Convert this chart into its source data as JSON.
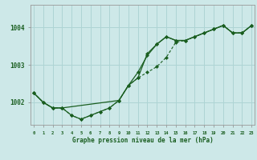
{
  "title": "Graphe pression niveau de la mer (hPa)",
  "bg_color": "#cde8e8",
  "grid_color": "#aed4d4",
  "line_color": "#1a5e20",
  "x_ticks": [
    0,
    1,
    2,
    3,
    4,
    5,
    6,
    7,
    8,
    9,
    10,
    11,
    12,
    13,
    14,
    15,
    16,
    17,
    18,
    19,
    20,
    21,
    22,
    23
  ],
  "y_ticks": [
    1002,
    1003,
    1004
  ],
  "ylim": [
    1001.4,
    1004.6
  ],
  "xlim": [
    -0.3,
    23.3
  ],
  "series1_x": [
    0,
    1,
    2,
    3,
    4,
    5,
    6,
    7,
    8,
    9,
    10,
    11,
    12,
    13,
    14,
    15,
    16,
    17,
    18,
    19,
    20,
    21,
    22,
    23
  ],
  "series1_y": [
    1002.25,
    1002.0,
    1001.85,
    1001.85,
    1001.65,
    1001.55,
    1001.65,
    1001.75,
    1001.85,
    1002.05,
    1002.45,
    1002.8,
    1003.25,
    1003.55,
    1003.75,
    1003.65,
    1003.65,
    1003.75,
    1003.85,
    1003.95,
    1004.05,
    1003.85,
    1003.85,
    1004.05
  ],
  "series2_x": [
    0,
    1,
    2,
    3,
    4,
    5,
    6,
    7,
    8,
    9,
    10,
    11,
    12,
    13,
    14,
    15,
    16,
    17,
    18,
    19,
    20,
    21,
    22,
    23
  ],
  "series2_y": [
    1002.25,
    1002.0,
    1001.85,
    1001.85,
    1001.65,
    1001.55,
    1001.65,
    1001.75,
    1001.85,
    1002.05,
    1002.45,
    1002.65,
    1002.8,
    1002.95,
    1003.2,
    1003.6,
    1003.65,
    1003.75,
    1003.85,
    1003.95,
    1004.05,
    1003.85,
    1003.85,
    1004.05
  ],
  "series3_x": [
    0,
    1,
    2,
    3,
    9,
    10,
    11,
    12,
    13,
    14,
    15,
    16,
    19,
    20,
    21,
    22,
    23
  ],
  "series3_y": [
    1002.25,
    1002.0,
    1001.85,
    1001.85,
    1002.05,
    1002.45,
    1002.65,
    1003.3,
    1003.55,
    1003.75,
    1003.65,
    1003.65,
    1003.95,
    1004.05,
    1003.85,
    1003.85,
    1004.05
  ]
}
